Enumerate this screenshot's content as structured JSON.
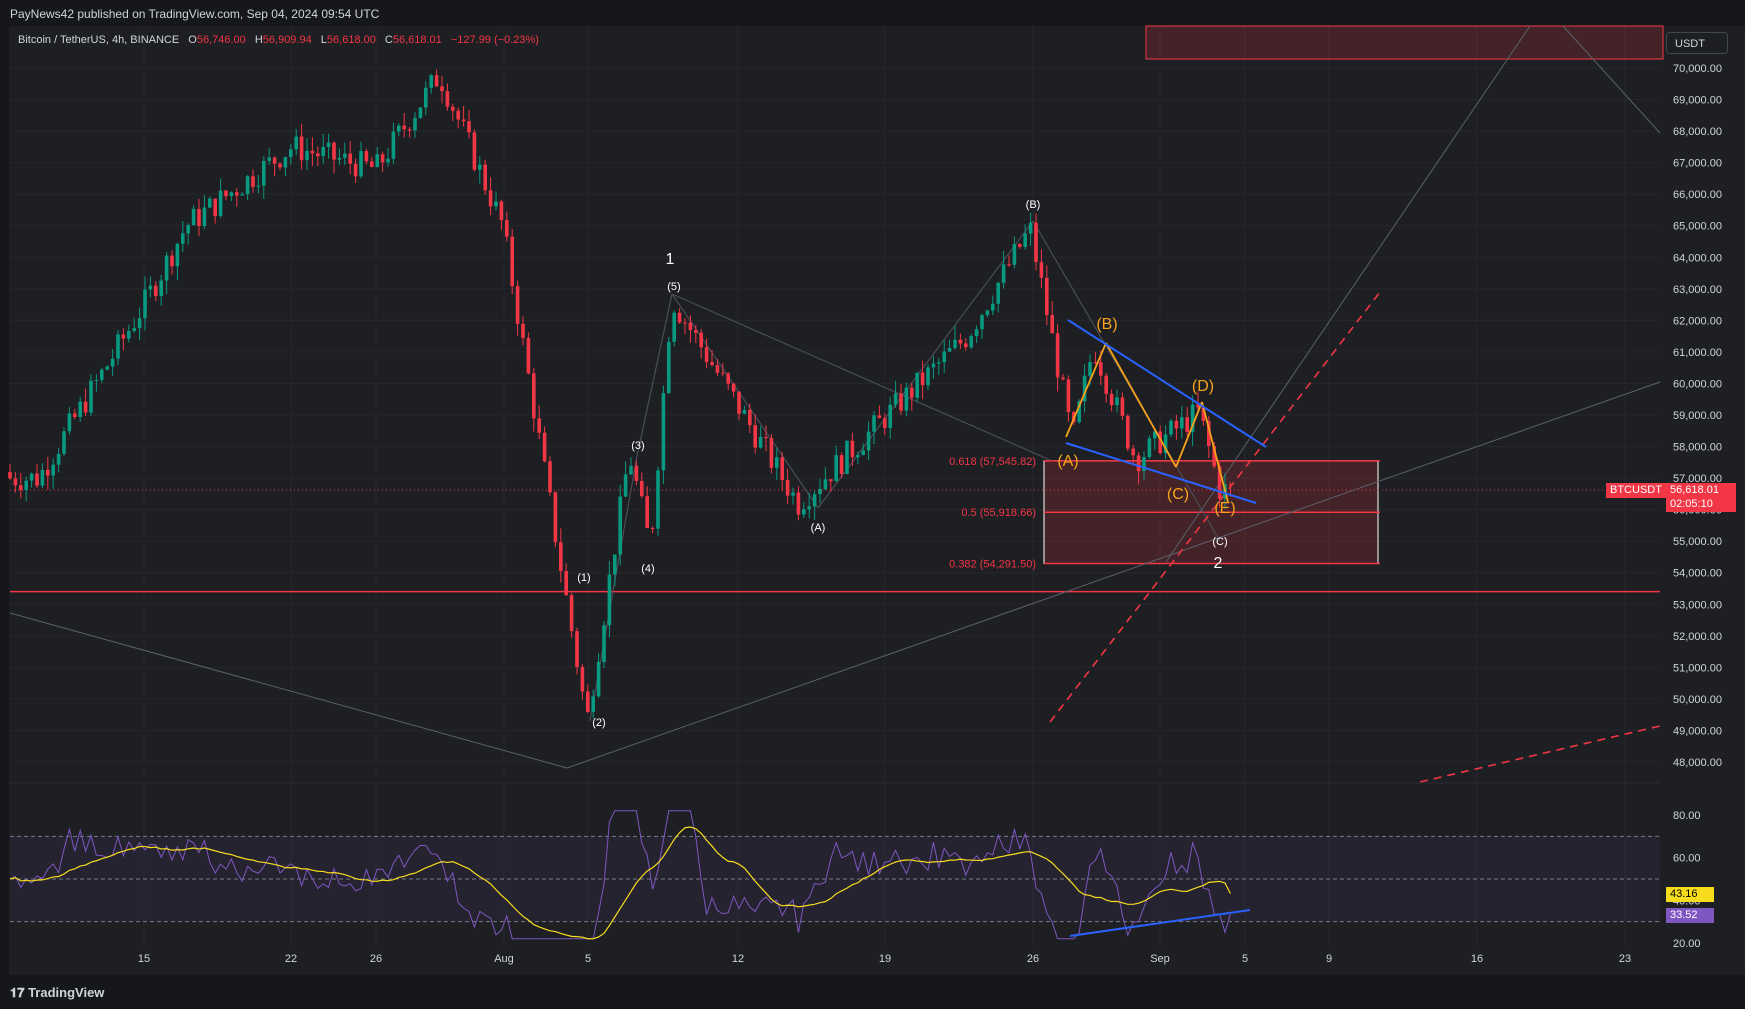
{
  "header": {
    "publisher_line": "PayNews42 published on TradingView.com, Sep 04, 2024 09:54 UTC"
  },
  "symbol": {
    "name": "Bitcoin / TetherUS, 4h, BINANCE",
    "o_label": "O",
    "o": "56,746.00",
    "h_label": "H",
    "h": "56,909.94",
    "l_label": "L",
    "l": "56,618.00",
    "c_label": "C",
    "c": "56,618.01",
    "change": "−127.99 (−0.23%)"
  },
  "currency_button": "USDT",
  "price_axis": [
    "70,000.00",
    "69,000.00",
    "68,000.00",
    "67,000.00",
    "66,000.00",
    "65,000.00",
    "64,000.00",
    "63,000.00",
    "62,000.00",
    "61,000.00",
    "60,000.00",
    "59,000.00",
    "58,000.00",
    "57,000.00",
    "56,000.00",
    "55,000.00",
    "54,000.00",
    "53,000.00",
    "52,000.00",
    "51,000.00",
    "50,000.00",
    "49,000.00",
    "48,000.00"
  ],
  "price_tag": {
    "symbol": "BTCUSDT",
    "price": "56,618.01",
    "countdown": "02:05:10"
  },
  "rsi_axis": [
    "80.00",
    "60.00",
    "40.00",
    "20.00"
  ],
  "rsi_tags": {
    "ma": "43.16",
    "rsi": "33.52"
  },
  "time_axis": [
    "15",
    "22",
    "26",
    "Aug",
    "5",
    "12",
    "19",
    "26",
    "Sep",
    "5",
    "9",
    "16",
    "23"
  ],
  "fib": {
    "f618": "0.618 (57,545.82)",
    "f5": "0.5 (55,918.66)",
    "f382": "0.382 (54,291.50)"
  },
  "wave_labels": {
    "w1": "1",
    "w2": "2",
    "p1": "(1)",
    "p2": "(2)",
    "p3": "(3)",
    "p4": "(4)",
    "p5": "(5)",
    "A": "(A)",
    "B": "(B)",
    "C": "(C)"
  },
  "orange_labels": {
    "A": "(A)",
    "B": "(B)",
    "C": "(C)",
    "D": "(D)",
    "E": "(E)"
  },
  "footer": {
    "brand": "TradingView"
  },
  "colors": {
    "up": "#089981",
    "down": "#f23645",
    "bg": "#1e1f23",
    "fib": "#f23645",
    "wave_orange": "#f7a21b",
    "trend_blue": "#2962ff",
    "rsi": "#7e57c2",
    "rsi_ma": "#f7dc1e"
  },
  "chart_data": {
    "type": "candlestick",
    "title": "Bitcoin / TetherUS, 4h, BINANCE",
    "ylim": [
      48000,
      70500
    ],
    "x_ticks": [
      "15",
      "22",
      "26",
      "Aug",
      "5",
      "12",
      "19",
      "26",
      "Sep",
      "5",
      "9",
      "16",
      "23"
    ],
    "approx_close_path": [
      {
        "x": "Jul 10",
        "y": 57000
      },
      {
        "x": "Jul 15",
        "y": 62500
      },
      {
        "x": "Jul 17",
        "y": 65000
      },
      {
        "x": "Jul 22",
        "y": 67500
      },
      {
        "x": "Jul 26",
        "y": 66800
      },
      {
        "x": "Jul 29",
        "y": 69800
      },
      {
        "x": "Aug 1",
        "y": 65000
      },
      {
        "x": "Aug 5",
        "y": 49300
      },
      {
        "x": "Aug 7",
        "y": 57800
      },
      {
        "x": "Aug 8",
        "y": 54800
      },
      {
        "x": "Aug 9",
        "y": 62700
      },
      {
        "x": "Aug 15",
        "y": 56200
      },
      {
        "x": "Aug 23",
        "y": 61500
      },
      {
        "x": "Aug 26",
        "y": 64900
      },
      {
        "x": "Aug 28",
        "y": 58200
      },
      {
        "x": "Aug 29",
        "y": 61200
      },
      {
        "x": "Aug 31",
        "y": 57600
      },
      {
        "x": "Sep 3",
        "y": 59100
      },
      {
        "x": "Sep 4",
        "y": 56618
      }
    ],
    "last_price": 56618.01,
    "horizontal_line": 53400,
    "fib_levels": [
      {
        "ratio": 0.618,
        "price": 57545.82
      },
      {
        "ratio": 0.5,
        "price": 55918.66
      },
      {
        "ratio": 0.382,
        "price": 54291.5
      }
    ],
    "rsi": {
      "ylim": [
        20,
        80
      ],
      "upper_band": 70,
      "mid": 50,
      "lower_band": 30,
      "rsi_last": 33.52,
      "ma_last": 43.16
    }
  }
}
